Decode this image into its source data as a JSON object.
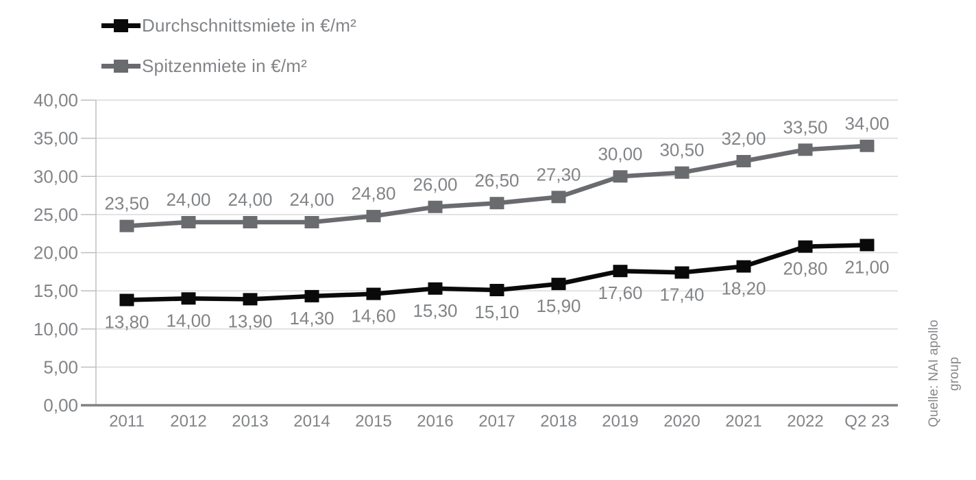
{
  "source_caption": "Quelle: NAI apollo group",
  "colors": {
    "series_average": "#0a0a0a",
    "series_prime": "#696b6f",
    "label_text": "#828487",
    "gridline": "#d9dadb",
    "axis_line": "#bdbec0",
    "axis_bottom": "#7f8184",
    "background": "#ffffff"
  },
  "chart_data": {
    "type": "line",
    "title": "",
    "xlabel": "",
    "ylabel": "",
    "grid": true,
    "legend_position": "top-left",
    "categories": [
      "2011",
      "2012",
      "2013",
      "2014",
      "2015",
      "2016",
      "2017",
      "2018",
      "2019",
      "2020",
      "2021",
      "2022",
      "Q2 23"
    ],
    "series": [
      {
        "name": "Durchschnittsmiete in €/m²",
        "color": "#0a0a0a",
        "marker": "square",
        "label_position": "below",
        "values": [
          13.8,
          14.0,
          13.9,
          14.3,
          14.6,
          15.3,
          15.1,
          15.9,
          17.6,
          17.4,
          18.2,
          20.8,
          21.0
        ],
        "labels": [
          "13,80",
          "14,00",
          "13,90",
          "14,30",
          "14,60",
          "15,30",
          "15,10",
          "15,90",
          "17,60",
          "17,40",
          "18,20",
          "20,80",
          "21,00"
        ]
      },
      {
        "name": "Spitzenmiete in €/m²",
        "color": "#696b6f",
        "marker": "square",
        "label_position": "above",
        "values": [
          23.5,
          24.0,
          24.0,
          24.0,
          24.8,
          26.0,
          26.5,
          27.3,
          30.0,
          30.5,
          32.0,
          33.5,
          34.0
        ],
        "labels": [
          "23,50",
          "24,00",
          "24,00",
          "24,00",
          "24,80",
          "26,00",
          "26,50",
          "27,30",
          "30,00",
          "30,50",
          "32,00",
          "33,50",
          "34,00"
        ]
      }
    ],
    "y_axis": {
      "min": 0,
      "max": 40,
      "tick_step": 5,
      "tick_labels": [
        "0,00",
        "5,00",
        "10,00",
        "15,00",
        "20,00",
        "25,00",
        "30,00",
        "35,00",
        "40,00"
      ]
    }
  }
}
